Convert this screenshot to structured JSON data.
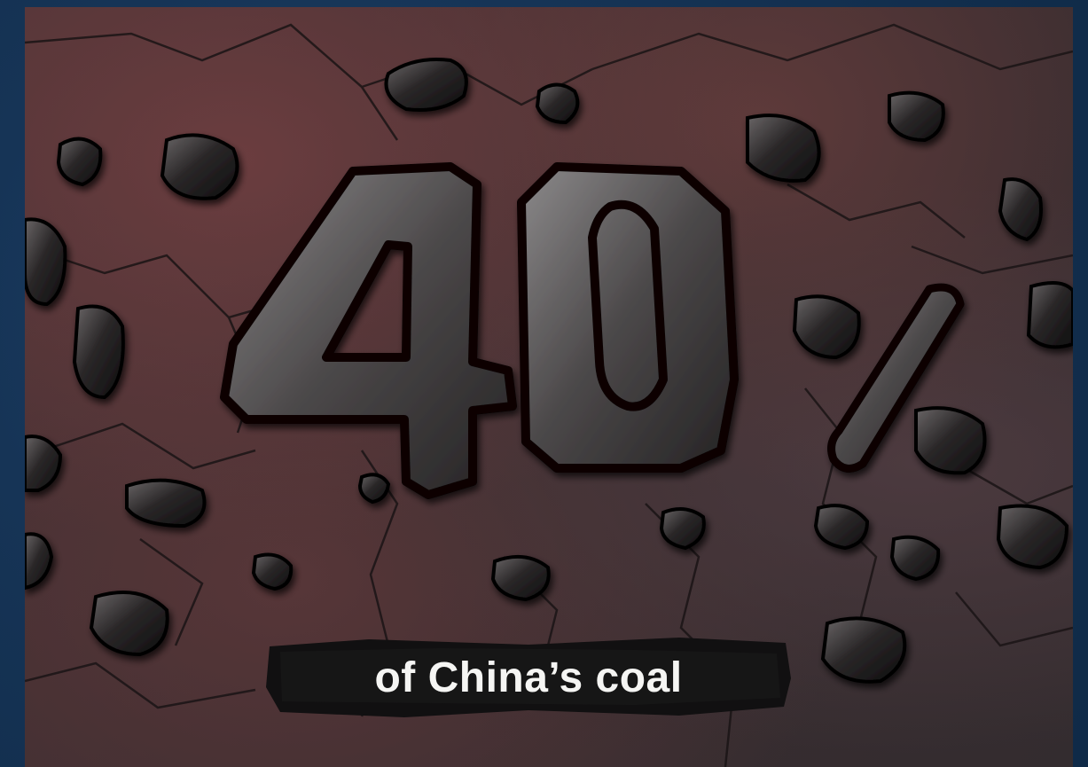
{
  "headline": {
    "number": "40",
    "percent_sign": "%"
  },
  "caption": {
    "text": "of China’s coal"
  },
  "colors": {
    "frame": "#14304f",
    "ground_dark": "#2f2a2c",
    "ground_rust": "#6b3d3f",
    "coal": "#1c1a1b",
    "caption_text": "#f5f5f3"
  },
  "icons": [
    "coal-lump-icon",
    "cracked-ground-texture"
  ]
}
